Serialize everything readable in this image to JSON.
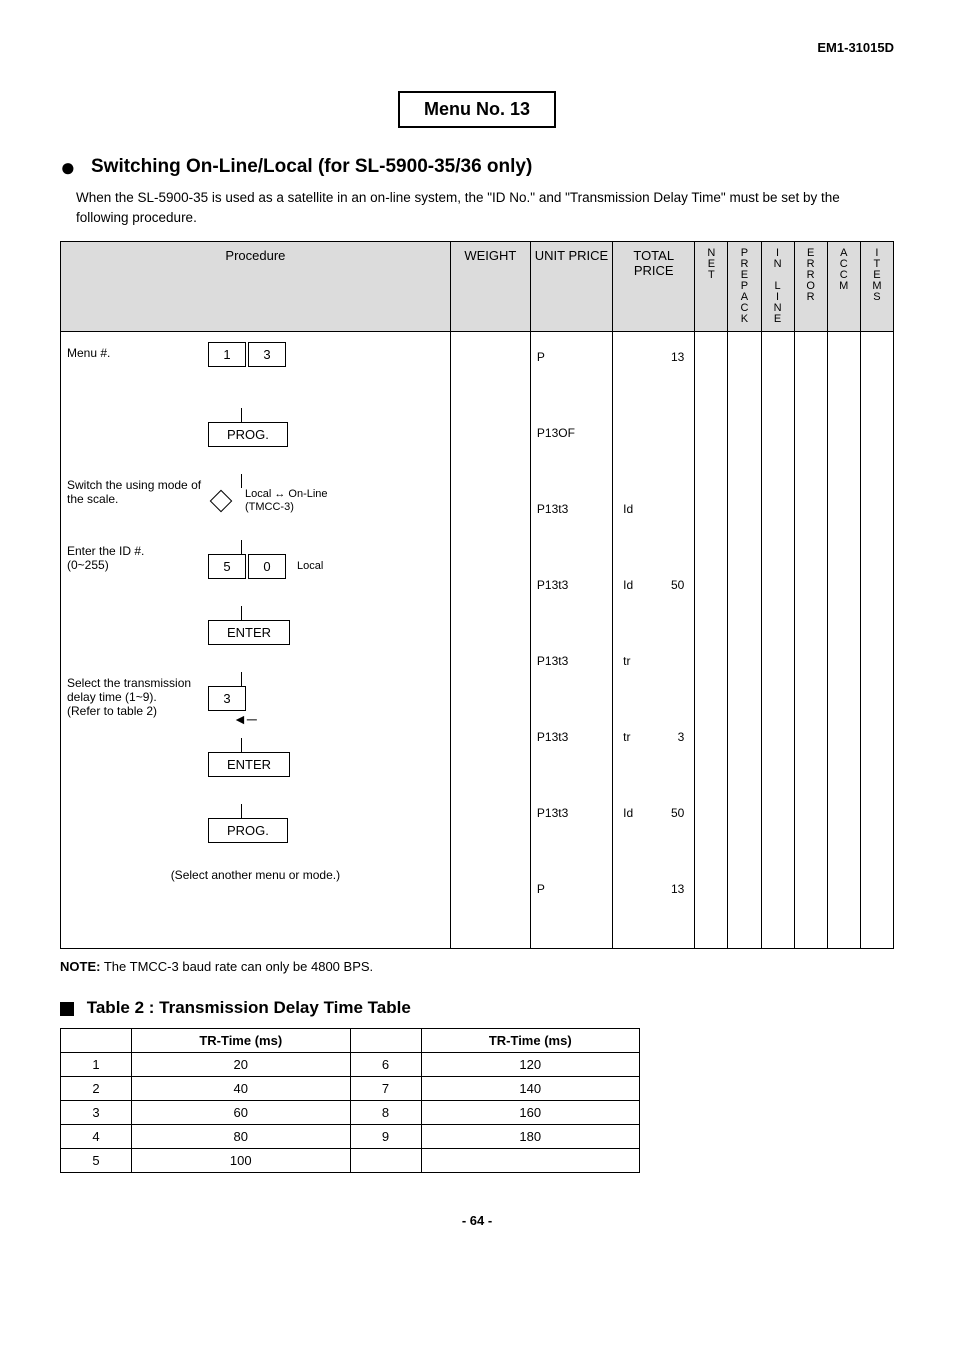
{
  "doc_id": "EM1-31015D",
  "menu_box": "Menu No. 13",
  "section_title": "Switching On-Line/Local (for SL-5900-35/36 only)",
  "intro": "When the SL-5900-35 is used as a satellite in an on-line system, the \"ID No.\" and \"Transmission Delay Time\" must be set by the following procedure.",
  "headers": {
    "procedure": "Procedure",
    "weight": "WEIGHT",
    "unit_price": "UNIT PRICE",
    "total_price": "TOTAL PRICE",
    "net": "NET",
    "prepack": "PREPACK",
    "inline": "IN LINE",
    "error": "ERROR",
    "accm": "ACCM",
    "items": "ITEMS"
  },
  "steps": [
    {
      "label": "Menu #.",
      "keys": [
        "1",
        "3"
      ],
      "annot": "",
      "unit": "P",
      "total_l": "",
      "total_r": "13"
    },
    {
      "label": "",
      "keys_wide": "PROG.",
      "unit": "P13OF",
      "total_l": "",
      "total_r": ""
    },
    {
      "label": "Switch the using mode of the scale.",
      "diamond": true,
      "annot": "Local ↔ On-Line\n(TMCC-3)",
      "unit": "P13t3",
      "total_l": "Id",
      "total_r": ""
    },
    {
      "label": "Enter the ID #.\n(0~255)",
      "keys": [
        "5",
        "0"
      ],
      "annot": "Local",
      "unit": "P13t3",
      "total_l": "Id",
      "total_r": "50"
    },
    {
      "label": "",
      "keys_wide": "ENTER",
      "unit": "P13t3",
      "total_l": "tr",
      "total_r": ""
    },
    {
      "label": "Select the transmission delay time (1~9).\n(Refer to table 2)",
      "keys": [
        "3"
      ],
      "arrow_back": true,
      "unit": "P13t3",
      "total_l": "tr",
      "total_r": "3"
    },
    {
      "label": "",
      "keys_wide": "ENTER",
      "unit": "P13t3",
      "total_l": "Id",
      "total_r": "50"
    },
    {
      "label": "",
      "keys_wide": "PROG.",
      "unit": "P",
      "total_l": "",
      "total_r": "13"
    }
  ],
  "select_note": "(Select another menu or mode.)",
  "note_label": "NOTE:",
  "note_text": "The TMCC-3 baud rate can only be 4800 BPS.",
  "table2_title": "Table 2 : Transmission Delay Time Table",
  "table2_header": "TR-Time (ms)",
  "table2": {
    "left": [
      {
        "i": "1",
        "v": "20"
      },
      {
        "i": "2",
        "v": "40"
      },
      {
        "i": "3",
        "v": "60"
      },
      {
        "i": "4",
        "v": "80"
      },
      {
        "i": "5",
        "v": "100"
      }
    ],
    "right": [
      {
        "i": "6",
        "v": "120"
      },
      {
        "i": "7",
        "v": "140"
      },
      {
        "i": "8",
        "v": "160"
      },
      {
        "i": "9",
        "v": "180"
      }
    ]
  },
  "page_num": "- 64 -"
}
